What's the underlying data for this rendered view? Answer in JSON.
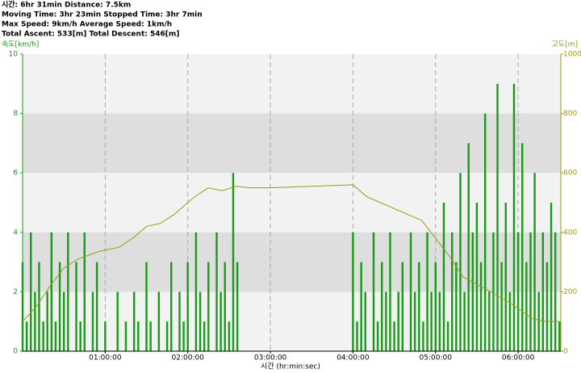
{
  "header": {
    "lines": [
      "시간: 6hr 31min  Distance: 7.5km",
      "Moving Time: 3hr 23min  Stopped Time: 3hr 7min",
      "Max Speed: 9km/h  Average Speed: 1km/h",
      "Total Ascent: 533[m]  Total Descent: 546[m]"
    ]
  },
  "chart_data": {
    "type": "bar-line",
    "x_label": "시간 (hr:min:sec)",
    "y_label": "속도[km/h]",
    "y2_label": "고도[m]",
    "xlim": [
      0,
      391
    ],
    "xticks": [
      {
        "value": 60,
        "label": "01:00:00"
      },
      {
        "value": 120,
        "label": "02:00:00"
      },
      {
        "value": 180,
        "label": "03:00:00"
      },
      {
        "value": 240,
        "label": "04:00:00"
      },
      {
        "value": 300,
        "label": "05:00:00"
      },
      {
        "value": 360,
        "label": "06:00:00"
      }
    ],
    "ylim": [
      0,
      10
    ],
    "yticks": [
      0,
      2,
      4,
      6,
      8,
      10
    ],
    "y2lim": [
      0,
      1000
    ],
    "y2ticks": [
      0,
      200,
      400,
      600,
      800,
      1000
    ],
    "grid": true,
    "series": [
      {
        "name": "속도",
        "color": "#1a9a1a",
        "kind": "bar",
        "x": [
          0,
          3,
          6,
          9,
          12,
          15,
          18,
          21,
          24,
          27,
          30,
          33,
          36,
          39,
          42,
          45,
          48,
          51,
          54,
          57,
          60,
          63,
          66,
          69,
          72,
          75,
          78,
          81,
          84,
          87,
          90,
          93,
          96,
          99,
          102,
          105,
          108,
          111,
          114,
          117,
          120,
          123,
          126,
          129,
          132,
          135,
          138,
          141,
          144,
          147,
          150,
          153,
          156,
          159,
          162,
          165,
          168,
          171,
          174,
          177,
          180,
          183,
          186,
          189,
          192,
          195,
          198,
          201,
          204,
          207,
          210,
          213,
          216,
          219,
          222,
          225,
          228,
          231,
          234,
          237,
          240,
          243,
          246,
          249,
          252,
          255,
          258,
          261,
          264,
          267,
          270,
          273,
          276,
          279,
          282,
          285,
          288,
          291,
          294,
          297,
          300,
          303,
          306,
          309,
          312,
          315,
          318,
          321,
          324,
          327,
          330,
          333,
          336,
          339,
          342,
          345,
          348,
          351,
          354,
          357,
          360,
          363,
          366,
          369,
          372,
          375,
          378,
          381,
          384,
          387,
          390
        ],
        "values": [
          3,
          1,
          4,
          2,
          3,
          1,
          2,
          4,
          1,
          3,
          2,
          4,
          0,
          3,
          1,
          4,
          0,
          2,
          3,
          0,
          1,
          0,
          0,
          2,
          0,
          1,
          0,
          2,
          1,
          0,
          3,
          1,
          0,
          2,
          0,
          1,
          3,
          0,
          2,
          1,
          3,
          0,
          4,
          2,
          1,
          3,
          0,
          4,
          2,
          3,
          1,
          6,
          3,
          0,
          0,
          0,
          0,
          0,
          0,
          0,
          0,
          0,
          0,
          0,
          0,
          0,
          0,
          0,
          0,
          0,
          0,
          0,
          0,
          0,
          0,
          0,
          0,
          0,
          0,
          0,
          4,
          1,
          3,
          2,
          0,
          4,
          1,
          3,
          2,
          4,
          1,
          2,
          3,
          0,
          4,
          2,
          3,
          1,
          4,
          2,
          3,
          2,
          5,
          1,
          4,
          3,
          6,
          2,
          7,
          4,
          5,
          3,
          8,
          2,
          4,
          9,
          3,
          5,
          2,
          9,
          4,
          7,
          3,
          4,
          6,
          2,
          4,
          3,
          5,
          4,
          1
        ]
      },
      {
        "name": "고도",
        "color": "#9a9a10",
        "kind": "line",
        "axis": "y2",
        "x": [
          0,
          10,
          20,
          30,
          40,
          55,
          70,
          80,
          90,
          100,
          110,
          125,
          135,
          145,
          155,
          165,
          180,
          210,
          240,
          250,
          260,
          275,
          290,
          300,
          310,
          320,
          340,
          355,
          370,
          380,
          391
        ],
        "values": [
          100,
          150,
          220,
          280,
          310,
          335,
          350,
          380,
          420,
          430,
          460,
          520,
          550,
          540,
          555,
          550,
          550,
          555,
          560,
          520,
          500,
          470,
          440,
          380,
          320,
          250,
          200,
          160,
          110,
          100,
          100
        ]
      }
    ]
  }
}
